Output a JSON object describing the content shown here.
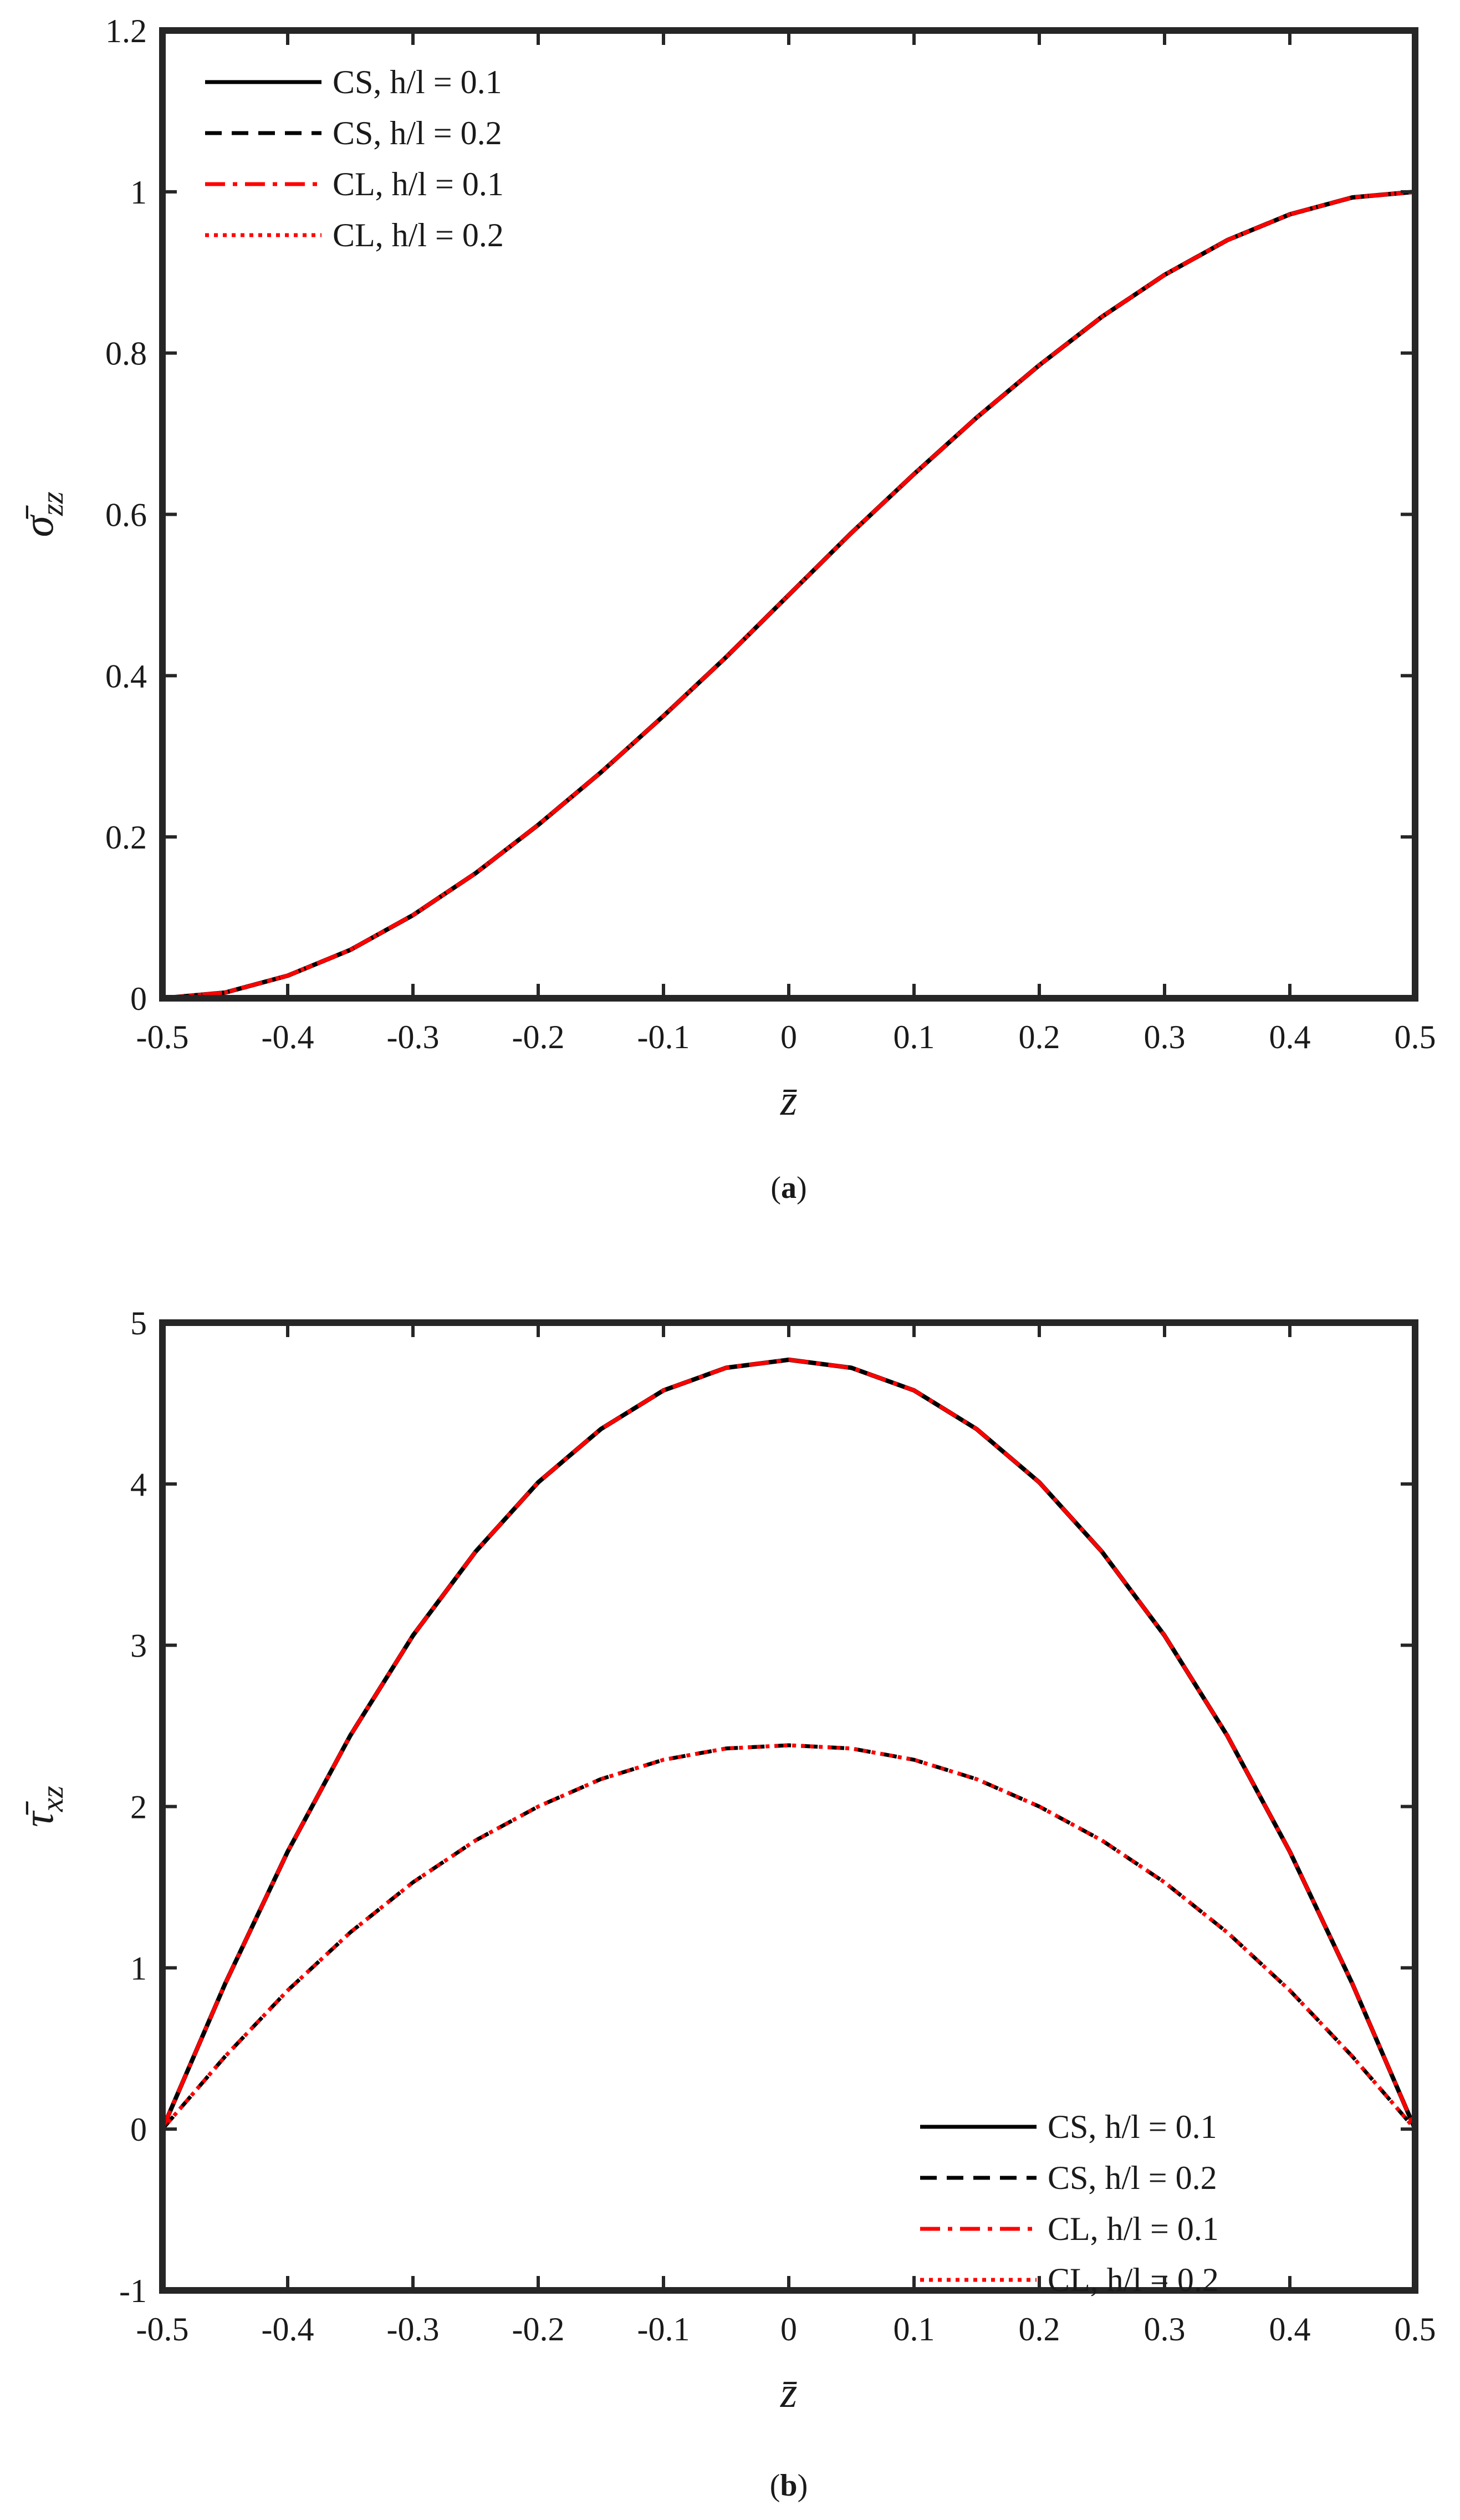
{
  "chart_data": [
    {
      "type": "line",
      "panel": "a",
      "caption_prefix": "(",
      "caption_letter": "a",
      "caption_suffix": ")",
      "xlabel": "z̄",
      "ylabel": "σ̄",
      "ylabel_sub": "zz",
      "xlim": [
        -0.5,
        0.5
      ],
      "ylim": [
        0,
        1.2
      ],
      "xticks": [
        -0.5,
        -0.4,
        -0.3,
        -0.2,
        -0.1,
        0,
        0.1,
        0.2,
        0.3,
        0.4,
        0.5
      ],
      "xtick_labels": [
        "-0.5",
        "-0.4",
        "-0.3",
        "-0.2",
        "-0.1",
        "0",
        "0.1",
        "0.2",
        "0.3",
        "0.4",
        "0.5"
      ],
      "yticks": [
        0,
        0.2,
        0.4,
        0.6,
        0.8,
        1,
        1.2
      ],
      "ytick_labels": [
        "0",
        "0.2",
        "0.4",
        "0.6",
        "0.8",
        "1",
        "1.2"
      ],
      "grid": false,
      "legend_position": "top-left",
      "x": [
        -0.5,
        -0.45,
        -0.4,
        -0.35,
        -0.3,
        -0.25,
        -0.2,
        -0.15,
        -0.1,
        -0.05,
        0,
        0.05,
        0.1,
        0.15,
        0.2,
        0.25,
        0.3,
        0.35,
        0.4,
        0.45,
        0.5
      ],
      "series": [
        {
          "name": "CS, h/l = 0.1",
          "color": "#000000",
          "dash": "solid",
          "values": [
            0,
            0.007,
            0.028,
            0.06,
            0.103,
            0.155,
            0.215,
            0.28,
            0.35,
            0.423,
            0.5,
            0.577,
            0.65,
            0.72,
            0.785,
            0.845,
            0.897,
            0.94,
            0.972,
            0.993,
            1.0
          ]
        },
        {
          "name": "CS, h/l = 0.2",
          "color": "#000000",
          "dash": "dashed",
          "values": [
            0,
            0.007,
            0.028,
            0.06,
            0.103,
            0.155,
            0.215,
            0.28,
            0.35,
            0.423,
            0.5,
            0.577,
            0.65,
            0.72,
            0.785,
            0.845,
            0.897,
            0.94,
            0.972,
            0.993,
            1.0
          ]
        },
        {
          "name": "CL, h/l = 0.1",
          "color": "#ff0000",
          "dash": "dashdot",
          "values": [
            0,
            0.007,
            0.028,
            0.06,
            0.103,
            0.155,
            0.215,
            0.28,
            0.35,
            0.423,
            0.5,
            0.577,
            0.65,
            0.72,
            0.785,
            0.845,
            0.897,
            0.94,
            0.972,
            0.993,
            1.0
          ]
        },
        {
          "name": "CL, h/l = 0.2",
          "color": "#ff0000",
          "dash": "dotted",
          "values": [
            0,
            0.007,
            0.028,
            0.06,
            0.103,
            0.155,
            0.215,
            0.28,
            0.35,
            0.423,
            0.5,
            0.577,
            0.65,
            0.72,
            0.785,
            0.845,
            0.897,
            0.94,
            0.972,
            0.993,
            1.0
          ]
        }
      ]
    },
    {
      "type": "line",
      "panel": "b",
      "caption_prefix": "(",
      "caption_letter": "b",
      "caption_suffix": ")",
      "xlabel": "z̄",
      "ylabel": "τ̄",
      "ylabel_sub": "xz",
      "xlim": [
        -0.5,
        0.5
      ],
      "ylim": [
        -1,
        5
      ],
      "xticks": [
        -0.5,
        -0.4,
        -0.3,
        -0.2,
        -0.1,
        0,
        0.1,
        0.2,
        0.3,
        0.4,
        0.5
      ],
      "xtick_labels": [
        "-0.5",
        "-0.4",
        "-0.3",
        "-0.2",
        "-0.1",
        "0",
        "0.1",
        "0.2",
        "0.3",
        "0.4",
        "0.5"
      ],
      "yticks": [
        -1,
        0,
        1,
        2,
        3,
        4,
        5
      ],
      "ytick_labels": [
        "-1",
        "0",
        "1",
        "2",
        "3",
        "4",
        "5"
      ],
      "grid": false,
      "legend_position": "bottom-right",
      "x": [
        -0.5,
        -0.45,
        -0.4,
        -0.35,
        -0.3,
        -0.25,
        -0.2,
        -0.15,
        -0.1,
        -0.05,
        0,
        0.05,
        0.1,
        0.15,
        0.2,
        0.25,
        0.3,
        0.35,
        0.4,
        0.45,
        0.5
      ],
      "series": [
        {
          "name": "CS, h/l = 0.1",
          "color": "#000000",
          "dash": "solid",
          "values": [
            0,
            0.9,
            1.72,
            2.44,
            3.06,
            3.58,
            4.01,
            4.34,
            4.58,
            4.72,
            4.77,
            4.72,
            4.58,
            4.34,
            4.01,
            3.58,
            3.06,
            2.44,
            1.72,
            0.9,
            0
          ]
        },
        {
          "name": "CS, h/l = 0.2",
          "color": "#000000",
          "dash": "dashed",
          "values": [
            0,
            0.45,
            0.86,
            1.22,
            1.53,
            1.79,
            2.0,
            2.17,
            2.29,
            2.36,
            2.38,
            2.36,
            2.29,
            2.17,
            2.0,
            1.79,
            1.53,
            1.22,
            0.86,
            0.45,
            0
          ]
        },
        {
          "name": "CL, h/l = 0.1",
          "color": "#ff0000",
          "dash": "dashdot",
          "values": [
            0,
            0.9,
            1.72,
            2.44,
            3.06,
            3.58,
            4.01,
            4.34,
            4.58,
            4.72,
            4.77,
            4.72,
            4.58,
            4.34,
            4.01,
            3.58,
            3.06,
            2.44,
            1.72,
            0.9,
            0
          ]
        },
        {
          "name": "CL, h/l = 0.2",
          "color": "#ff0000",
          "dash": "dotted",
          "values": [
            0,
            0.45,
            0.86,
            1.22,
            1.53,
            1.79,
            2.0,
            2.17,
            2.29,
            2.36,
            2.38,
            2.36,
            2.29,
            2.17,
            2.0,
            1.79,
            1.53,
            1.22,
            0.86,
            0.45,
            0
          ]
        }
      ]
    }
  ]
}
